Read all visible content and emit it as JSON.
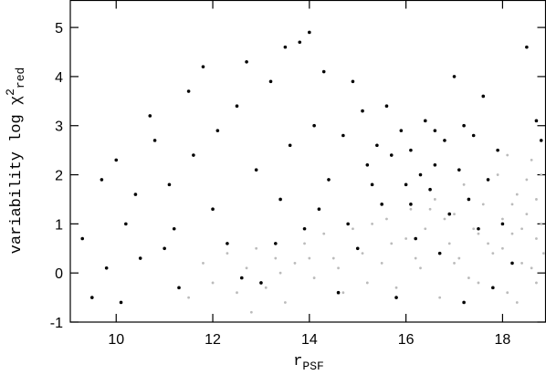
{
  "chart_data": {
    "type": "scatter",
    "xlabel": {
      "text": "r",
      "sub": "PSF"
    },
    "ylabel": {
      "text": "variability  log  χ",
      "sup": "2",
      "sub": "red"
    },
    "xlim": [
      9.05,
      18.89
    ],
    "ylim": [
      -1,
      5.55
    ],
    "xticks": [
      10,
      12,
      14,
      16,
      18
    ],
    "yticks": [
      -1,
      0,
      1,
      2,
      3,
      4,
      5
    ],
    "series": [
      {
        "color": "#bbbbbb",
        "x": [
          11.5,
          11.8,
          12.0,
          12.3,
          12.5,
          12.7,
          12.9,
          13.1,
          13.3,
          13.5,
          13.7,
          13.9,
          14.1,
          14.3,
          14.5,
          14.7,
          14.9,
          15.1,
          15.3,
          15.5,
          15.6,
          15.8,
          16.0,
          16.1,
          16.3,
          16.4,
          16.6,
          16.7,
          16.9,
          17.0,
          17.1,
          17.2,
          17.4,
          17.5,
          17.6,
          17.7,
          17.9,
          18.0,
          18.1,
          18.2,
          18.3,
          18.4,
          18.5,
          18.6,
          18.7,
          18.8,
          18.85,
          18.3,
          18.5,
          18.7,
          17.8,
          17.3,
          16.8,
          16.2,
          15.7,
          15.2,
          14.6,
          14.0,
          13.4,
          12.8,
          18.0,
          18.2,
          18.4,
          18.6,
          18.8,
          17.5,
          17.0,
          16.5,
          18.1,
          18.7
        ],
        "values": [
          -0.5,
          0.2,
          -0.2,
          0.4,
          -0.4,
          0.1,
          0.5,
          -0.3,
          0.3,
          -0.6,
          0.2,
          0.6,
          -0.1,
          0.8,
          0.3,
          -0.4,
          0.9,
          0.4,
          1.0,
          0.2,
          1.1,
          -0.3,
          0.7,
          1.3,
          0.1,
          0.9,
          1.5,
          -0.5,
          0.6,
          1.2,
          0.3,
          1.8,
          0.9,
          -0.2,
          1.4,
          0.6,
          2.0,
          1.1,
          -0.4,
          0.8,
          1.6,
          0.2,
          1.2,
          2.3,
          0.7,
          1.0,
          0.4,
          -0.6,
          1.9,
          1.5,
          0.4,
          -0.1,
          1.1,
          0.3,
          0.6,
          -0.2,
          0.1,
          0.3,
          0.0,
          -0.8,
          0.5,
          1.4,
          0.9,
          0.1,
          2.0,
          0.8,
          0.2,
          1.3,
          2.4,
          -0.2
        ]
      },
      {
        "color": "#000000",
        "x": [
          9.3,
          9.5,
          9.7,
          9.8,
          10.0,
          10.1,
          10.2,
          10.4,
          10.5,
          10.7,
          10.8,
          11.0,
          11.1,
          11.3,
          11.5,
          11.6,
          11.8,
          12.0,
          12.1,
          12.3,
          12.5,
          12.7,
          12.9,
          13.0,
          13.2,
          13.4,
          13.5,
          13.6,
          13.8,
          13.9,
          14.0,
          14.1,
          14.3,
          14.4,
          14.6,
          14.7,
          14.9,
          15.0,
          15.1,
          15.2,
          15.4,
          15.5,
          15.6,
          15.7,
          15.8,
          15.9,
          16.0,
          16.1,
          16.2,
          16.3,
          16.4,
          16.5,
          16.6,
          16.7,
          16.8,
          16.9,
          17.0,
          17.1,
          17.2,
          17.3,
          17.4,
          17.5,
          17.6,
          17.7,
          17.8,
          17.9,
          18.0,
          18.2,
          18.5,
          18.7,
          11.2,
          12.6,
          13.3,
          14.2,
          14.8,
          15.3,
          16.1,
          16.6,
          17.2,
          18.8
        ],
        "values": [
          0.7,
          -0.5,
          1.9,
          0.1,
          2.3,
          -0.6,
          1.0,
          1.6,
          0.3,
          3.2,
          2.7,
          0.5,
          1.8,
          -0.3,
          3.7,
          2.4,
          4.2,
          1.3,
          2.9,
          0.6,
          3.4,
          4.3,
          2.1,
          -0.2,
          3.9,
          1.5,
          4.6,
          2.6,
          4.7,
          0.9,
          4.9,
          3.0,
          4.1,
          1.9,
          -0.4,
          2.8,
          3.9,
          0.5,
          3.3,
          2.2,
          2.6,
          1.4,
          3.4,
          2.4,
          -0.5,
          2.9,
          1.8,
          2.5,
          0.7,
          2.0,
          3.1,
          1.7,
          2.2,
          0.4,
          2.7,
          1.2,
          4.0,
          2.1,
          -0.6,
          1.5,
          2.8,
          0.9,
          3.6,
          1.9,
          -0.3,
          2.5,
          1.0,
          0.2,
          4.6,
          3.1,
          0.9,
          -0.1,
          0.6,
          1.3,
          1.0,
          1.8,
          1.4,
          2.9,
          3.0,
          2.7
        ]
      }
    ]
  }
}
